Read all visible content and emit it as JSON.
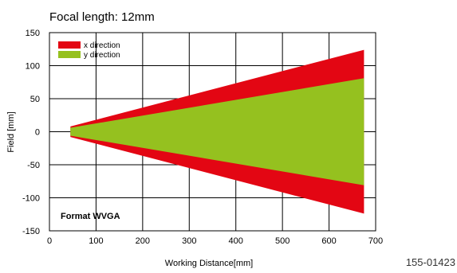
{
  "chart_data": {
    "type": "area",
    "title": "Focal length: 12mm",
    "xlabel": "Working Distance[mm]",
    "ylabel": "Field [mm]",
    "xlim": [
      0,
      700
    ],
    "ylim": [
      -150,
      150
    ],
    "x_ticks": [
      0,
      100,
      200,
      300,
      400,
      500,
      600,
      700
    ],
    "y_ticks": [
      150,
      100,
      50,
      0,
      -50,
      -100,
      -150
    ],
    "grid": true,
    "legend_position": "top-left",
    "annotation": "Format WVGA",
    "series": [
      {
        "name": "x direction",
        "color": "#e30613",
        "x": [
          45,
          675
        ],
        "upper": [
          8,
          124
        ],
        "lower": [
          -8,
          -124
        ]
      },
      {
        "name": "y direction",
        "color": "#95c11f",
        "x": [
          45,
          675
        ],
        "upper": [
          6,
          81
        ],
        "lower": [
          -6,
          -81
        ]
      }
    ]
  },
  "figure_code": "155-01423"
}
